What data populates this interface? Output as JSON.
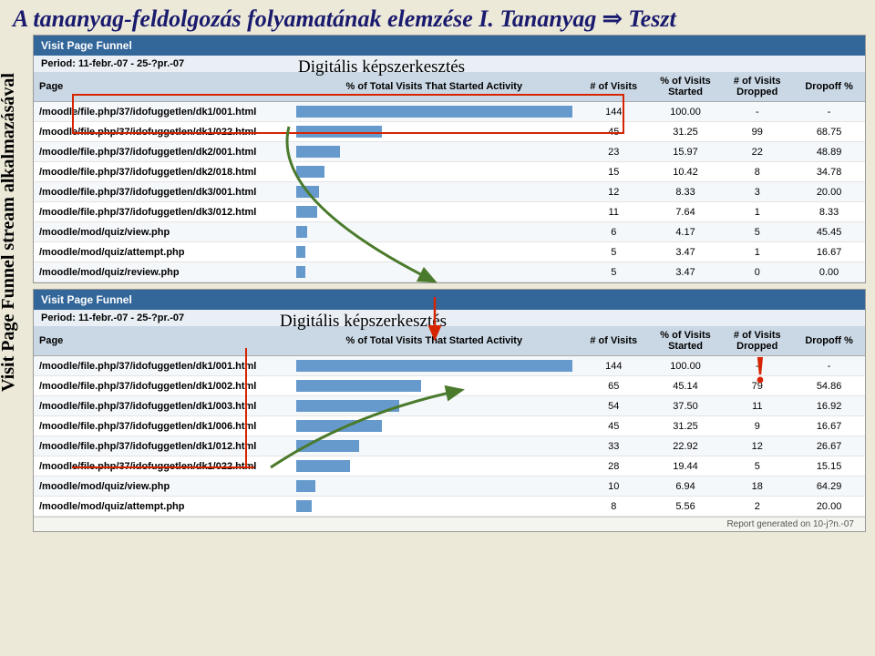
{
  "title_parts": {
    "a": "A tananyag-feldolgozás folyamatának elemzése I. Tananyag ",
    "b": "⇒",
    "c": " Teszt"
  },
  "side_label": "Visit Page Funnel stream alkalmazásával",
  "overlay_label": "Digitális képszerkesztés",
  "panel_title": "Visit Page Funnel",
  "period_label": "Period: 11-febr.-07 - 25-?pr.-07",
  "columns": {
    "page": "Page",
    "pct_total": "% of Total Visits That Started Activity",
    "visits": "# of Visits",
    "pct_started": "% of Visits Started",
    "dropped": "# of Visits Dropped",
    "dropoff": "Dropoff %"
  },
  "panel1": {
    "rows": [
      {
        "page": "/moodle/file.php/37/idofuggetlen/dk1/001.html",
        "bar": 100,
        "visits": "144",
        "pct": "100.00",
        "dropped": "-",
        "dropoff": "-"
      },
      {
        "page": "/moodle/file.php/37/idofuggetlen/dk1/022.html",
        "bar": 31.25,
        "visits": "45",
        "pct": "31.25",
        "dropped": "99",
        "dropoff": "68.75"
      },
      {
        "page": "/moodle/file.php/37/idofuggetlen/dk2/001.html",
        "bar": 15.97,
        "visits": "23",
        "pct": "15.97",
        "dropped": "22",
        "dropoff": "48.89"
      },
      {
        "page": "/moodle/file.php/37/idofuggetlen/dk2/018.html",
        "bar": 10.42,
        "visits": "15",
        "pct": "10.42",
        "dropped": "8",
        "dropoff": "34.78"
      },
      {
        "page": "/moodle/file.php/37/idofuggetlen/dk3/001.html",
        "bar": 8.33,
        "visits": "12",
        "pct": "8.33",
        "dropped": "3",
        "dropoff": "20.00"
      },
      {
        "page": "/moodle/file.php/37/idofuggetlen/dk3/012.html",
        "bar": 7.64,
        "visits": "11",
        "pct": "7.64",
        "dropped": "1",
        "dropoff": "8.33"
      },
      {
        "page": "/moodle/mod/quiz/view.php",
        "bar": 4.17,
        "visits": "6",
        "pct": "4.17",
        "dropped": "5",
        "dropoff": "45.45"
      },
      {
        "page": "/moodle/mod/quiz/attempt.php",
        "bar": 3.47,
        "visits": "5",
        "pct": "3.47",
        "dropped": "1",
        "dropoff": "16.67"
      },
      {
        "page": "/moodle/mod/quiz/review.php",
        "bar": 3.47,
        "visits": "5",
        "pct": "3.47",
        "dropped": "0",
        "dropoff": "0.00"
      }
    ]
  },
  "panel2": {
    "rows": [
      {
        "page": "/moodle/file.php/37/idofuggetlen/dk1/001.html",
        "bar": 100,
        "visits": "144",
        "pct": "100.00",
        "dropped": "-",
        "dropoff": "-"
      },
      {
        "page": "/moodle/file.php/37/idofuggetlen/dk1/002.html",
        "bar": 45.14,
        "visits": "65",
        "pct": "45.14",
        "dropped": "79",
        "dropoff": "54.86"
      },
      {
        "page": "/moodle/file.php/37/idofuggetlen/dk1/003.html",
        "bar": 37.5,
        "visits": "54",
        "pct": "37.50",
        "dropped": "11",
        "dropoff": "16.92"
      },
      {
        "page": "/moodle/file.php/37/idofuggetlen/dk1/006.html",
        "bar": 31.25,
        "visits": "45",
        "pct": "31.25",
        "dropped": "9",
        "dropoff": "16.67"
      },
      {
        "page": "/moodle/file.php/37/idofuggetlen/dk1/012.html",
        "bar": 22.92,
        "visits": "33",
        "pct": "22.92",
        "dropped": "12",
        "dropoff": "26.67"
      },
      {
        "page": "/moodle/file.php/37/idofuggetlen/dk1/022.html",
        "bar": 19.44,
        "visits": "28",
        "pct": "19.44",
        "dropped": "5",
        "dropoff": "15.15"
      },
      {
        "page": "/moodle/mod/quiz/view.php",
        "bar": 6.94,
        "visits": "10",
        "pct": "6.94",
        "dropped": "18",
        "dropoff": "64.29"
      },
      {
        "page": "/moodle/mod/quiz/attempt.php",
        "bar": 5.56,
        "visits": "8",
        "pct": "5.56",
        "dropped": "2",
        "dropoff": "20.00"
      }
    ]
  },
  "footer": "Report generated on 10-j?n.-07",
  "colors": {
    "header_bg": "#336699",
    "thead_bg": "#cad8e6",
    "bar_fill": "#6699cc",
    "row_odd": "#f5f8fb",
    "row_even": "#ffffff",
    "title_color": "#1a1a6e",
    "hilite": "#d62400",
    "arrow": "#4a7a2b"
  }
}
